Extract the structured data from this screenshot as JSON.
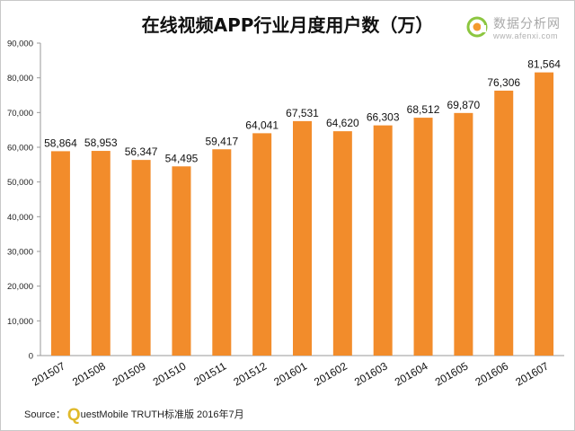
{
  "chart_data": {
    "type": "bar",
    "title": "在线视频APP行业月度用户数（万）",
    "categories": [
      "201507",
      "201508",
      "201509",
      "201510",
      "201511",
      "201512",
      "201601",
      "201602",
      "201603",
      "201604",
      "201605",
      "201606",
      "201607"
    ],
    "values": [
      58864,
      58953,
      56347,
      54495,
      59417,
      64041,
      67531,
      64620,
      66303,
      68512,
      69870,
      76306,
      81564
    ],
    "value_labels": [
      "58,864",
      "58,953",
      "56,347",
      "54,495",
      "59,417",
      "64,041",
      "67,531",
      "64,620",
      "66,303",
      "68,512",
      "69,870",
      "76,306",
      "81,564"
    ],
    "yticks": [
      "0",
      "10,000",
      "20,000",
      "30,000",
      "40,000",
      "50,000",
      "60,000",
      "70,000",
      "80,000",
      "90,000"
    ],
    "ylim": [
      0,
      90000
    ],
    "grid": false,
    "legend": "none",
    "bar_color": "#f28c2b"
  },
  "logo": {
    "brand": "数据分析网",
    "site": "www.afenxi.com"
  },
  "source": {
    "prefix": "Source：",
    "q_letter": "Q",
    "text": "uestMobile TRUTH标准版 2016年7月"
  },
  "colors": {
    "accent": "#f28c2b",
    "logo_green": "#8cc63f",
    "logo_orange": "#f39a2e"
  }
}
